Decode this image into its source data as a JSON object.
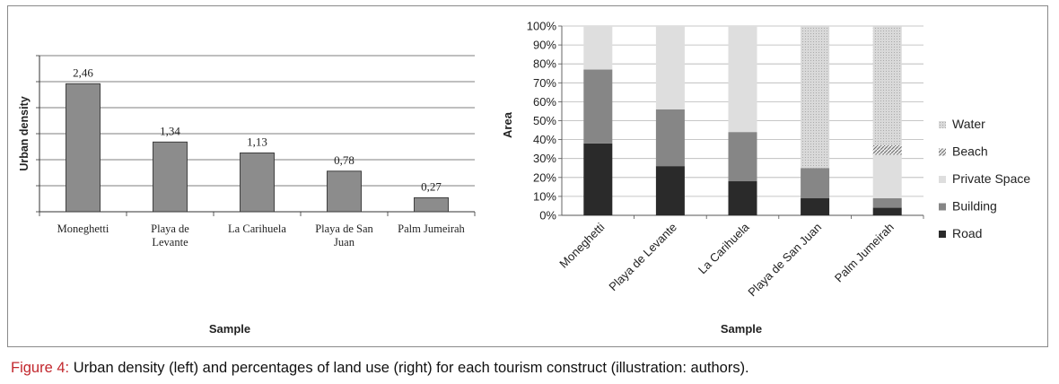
{
  "chart_data": [
    {
      "type": "bar",
      "ylabel": "Urban density",
      "xlabel": "Sample",
      "categories": [
        "Moneghetti",
        "Playa de Levante",
        "La Carihuela",
        "Playa de San Juan",
        "Palm Jumeirah"
      ],
      "category_lines": [
        [
          "Moneghetti"
        ],
        [
          "Playa de",
          "Levante"
        ],
        [
          "La Carihuela"
        ],
        [
          "Playa de San",
          "Juan"
        ],
        [
          "Palm Jumeirah"
        ]
      ],
      "values": [
        2.46,
        1.34,
        1.13,
        0.78,
        0.27
      ],
      "data_labels": [
        "2,46",
        "1,34",
        "1,13",
        "0,78",
        "0,27"
      ],
      "ylim": [
        0,
        3
      ],
      "y_tick_labels_shown": false,
      "grid": true,
      "colors": {
        "bar": "#8c8c8c"
      }
    },
    {
      "type": "bar",
      "stacked": true,
      "ylabel": "Area",
      "xlabel": "Sample",
      "categories": [
        "Moneghetti",
        "Playa de Levante",
        "La Carihuela",
        "Playa de San Juan",
        "Palm Jumeirah"
      ],
      "y_ticks": [
        "0%",
        "10%",
        "20%",
        "30%",
        "40%",
        "50%",
        "60%",
        "70%",
        "80%",
        "90%",
        "100%"
      ],
      "ylim": [
        0,
        100
      ],
      "grid": true,
      "legend_position": "right",
      "legend": [
        "Water",
        "Beach",
        "Private Space",
        "Building",
        "Road"
      ],
      "series": [
        {
          "name": "Road",
          "color": "#2a2a2a",
          "pattern": "solid",
          "values": [
            38,
            26,
            18,
            9,
            4
          ]
        },
        {
          "name": "Building",
          "color": "#868686",
          "pattern": "solid",
          "values": [
            39,
            30,
            26,
            16,
            5
          ]
        },
        {
          "name": "Private Space",
          "color": "#dedede",
          "pattern": "solid",
          "values": [
            23,
            44,
            56,
            0,
            23
          ]
        },
        {
          "name": "Beach",
          "color": "#c0c0c0",
          "pattern": "hatch",
          "values": [
            0,
            0,
            0,
            0,
            5
          ]
        },
        {
          "name": "Water",
          "color": "#d6d6d6",
          "pattern": "dots",
          "values": [
            0,
            0,
            0,
            75,
            63
          ]
        }
      ]
    }
  ],
  "caption": {
    "label": "Figure 4:",
    "text": " Urban density (left) and percentages of land use (right) for each tourism construct (illustration: authors)."
  }
}
